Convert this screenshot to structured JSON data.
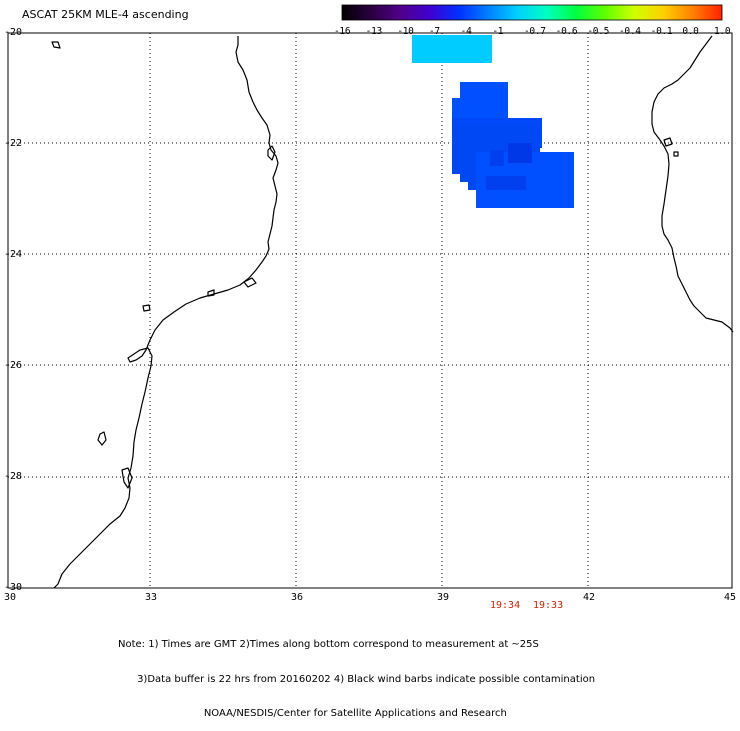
{
  "title": "ASCAT 25KM MLE-4 ascending",
  "colorbar": {
    "labels": [
      "-16",
      "-13",
      "-10",
      "-7",
      "-4",
      "-1",
      "-0.7",
      "-0.6",
      "-0.5",
      "-0.4",
      "-0.1",
      "0.0",
      "1.0"
    ],
    "colors": [
      "#000000",
      "#2a0040",
      "#50008a",
      "#4000d0",
      "#0030ff",
      "#0080ff",
      "#00d0ff",
      "#00ffc0",
      "#00ff40",
      "#60ff00",
      "#d0ff00",
      "#ffd000",
      "#ff8000",
      "#ff2000"
    ]
  },
  "axes": {
    "x_ticks": [
      "30",
      "33",
      "36",
      "39",
      "42",
      "45"
    ],
    "y_ticks": [
      "-20",
      "-22",
      "-24",
      "-26",
      "-28",
      "-30"
    ]
  },
  "times": [
    "19:34",
    "19:33"
  ],
  "note_lines": [
    "Note: 1) Times are GMT 2)Times along bottom correspond to measurement at ~25S",
    "      3)Data buffer is 22 hrs from 20160202 4) Black wind barbs indicate possible contamination",
    "                           NOAA/NESDIS/Center for Satellite Applications and Research"
  ],
  "swath_colors": {
    "cyan": "#00ccff",
    "blue": "#0050ff",
    "dark_blue": "#0040f0"
  }
}
